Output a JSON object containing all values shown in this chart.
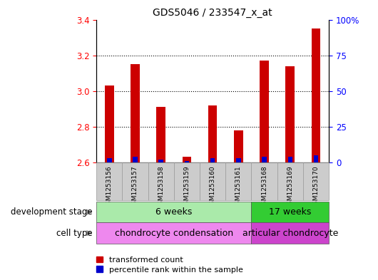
{
  "title": "GDS5046 / 233547_x_at",
  "samples": [
    "GSM1253156",
    "GSM1253157",
    "GSM1253158",
    "GSM1253159",
    "GSM1253160",
    "GSM1253161",
    "GSM1253168",
    "GSM1253169",
    "GSM1253170"
  ],
  "transformed_count": [
    3.03,
    3.15,
    2.91,
    2.63,
    2.92,
    2.78,
    3.17,
    3.14,
    3.35
  ],
  "percentile_rank": [
    3,
    4,
    2,
    1,
    3,
    3,
    4,
    4,
    5
  ],
  "base_value": 2.6,
  "ylim_left": [
    2.6,
    3.4
  ],
  "ylim_right": [
    0,
    100
  ],
  "yticks_left": [
    2.6,
    2.8,
    3.0,
    3.2,
    3.4
  ],
  "yticks_right": [
    0,
    25,
    50,
    75,
    100
  ],
  "ytick_labels_right": [
    "0",
    "25",
    "50",
    "75",
    "100%"
  ],
  "bar_color_red": "#cc0000",
  "bar_color_blue": "#0000cc",
  "development_stage_groups": [
    {
      "label": "6 weeks",
      "start": 0,
      "end": 5,
      "color": "#aaeaaa"
    },
    {
      "label": "17 weeks",
      "start": 6,
      "end": 8,
      "color": "#33cc33"
    }
  ],
  "cell_type_groups": [
    {
      "label": "chondrocyte condensation",
      "start": 0,
      "end": 5,
      "color": "#ee88ee"
    },
    {
      "label": "articular chondrocyte",
      "start": 6,
      "end": 8,
      "color": "#cc44cc"
    }
  ],
  "left_label_dev": "development stage",
  "left_label_cell": "cell type",
  "legend_red": "transformed count",
  "legend_blue": "percentile rank within the sample",
  "bar_width": 0.35,
  "blue_bar_width": 0.18,
  "sample_box_color": "#cccccc",
  "background_color": "#ffffff",
  "arrow_color": "#888888"
}
